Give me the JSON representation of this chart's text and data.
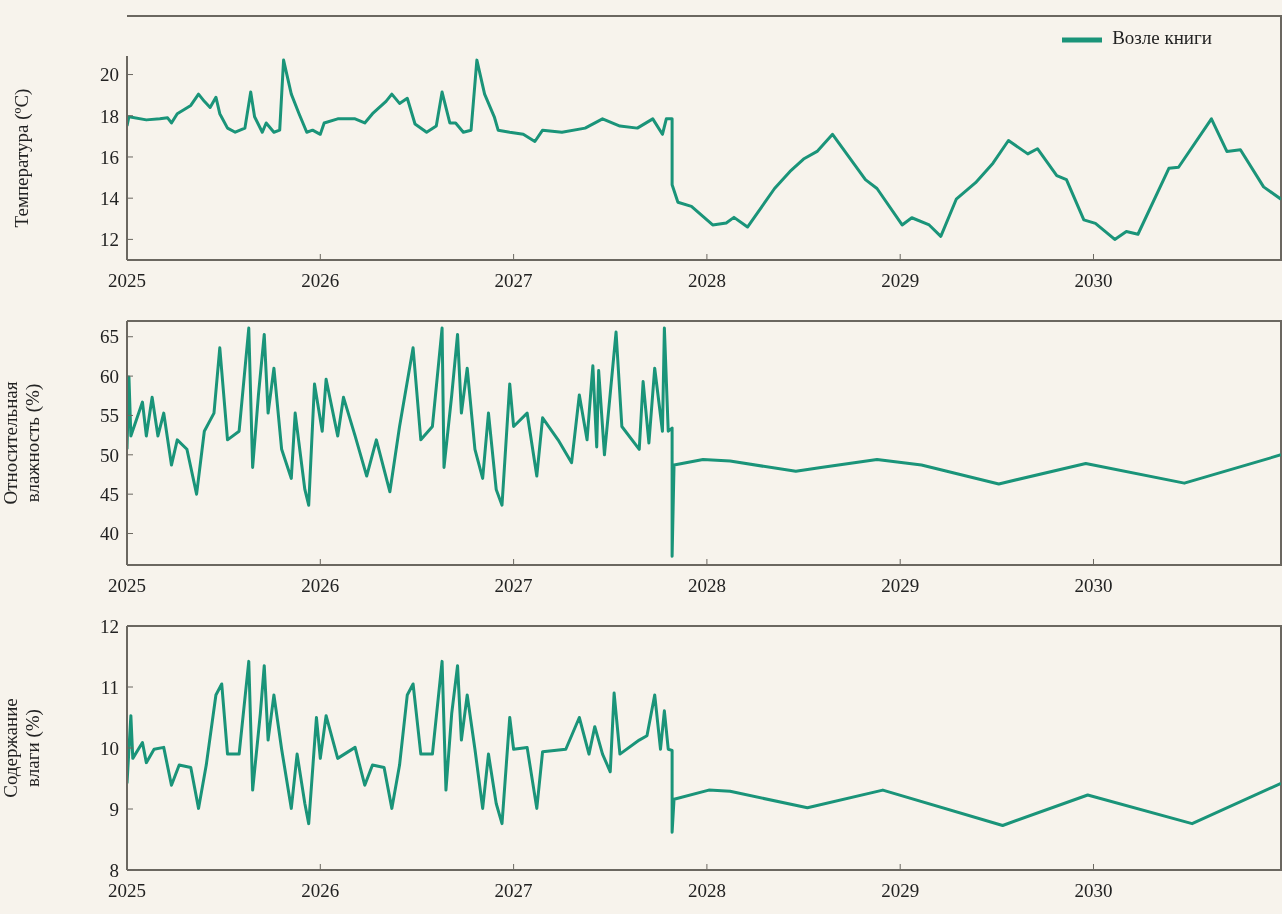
{
  "chart_data": [
    {
      "type": "line",
      "ylabel": "Температура (ºC)",
      "legend": "top right",
      "xlim": [
        2025,
        2030.97
      ],
      "xticks": [
        2025,
        2026,
        2027,
        2028,
        2029,
        2030
      ],
      "ylim": [
        11,
        20.9
      ],
      "yticks": [
        12,
        14,
        16,
        18,
        20
      ],
      "x": [
        2025,
        2025.01,
        2025.1,
        2025.17,
        2025.21,
        2025.23,
        2025.26,
        2025.33,
        2025.37,
        2025.4,
        2025.43,
        2025.46,
        2025.48,
        2025.52,
        2025.56,
        2025.61,
        2025.64,
        2025.66,
        2025.7,
        2025.72,
        2025.76,
        2025.79,
        2025.81,
        2025.85,
        2025.89,
        2025.93,
        2025.96,
        2026,
        2026.02,
        2026.09,
        2026.18,
        2026.23,
        2026.27,
        2026.34,
        2026.37,
        2026.41,
        2026.45,
        2026.49,
        2026.55,
        2026.6,
        2026.63,
        2026.67,
        2026.7,
        2026.74,
        2026.78,
        2026.81,
        2026.85,
        2026.9,
        2026.92,
        2026.98,
        2027.05,
        2027.11,
        2027.15,
        2027.25,
        2027.37,
        2027.46,
        2027.55,
        2027.64,
        2027.72,
        2027.77,
        2027.79,
        2027.82,
        2027.82,
        2027.85,
        2027.92,
        2028.03,
        2028.1,
        2028.14,
        2028.21,
        2028.35,
        2028.43,
        2028.5,
        2028.57,
        2028.65,
        2028.82,
        2028.88,
        2029.01,
        2029.06,
        2029.15,
        2029.21,
        2029.29,
        2029.39,
        2029.48,
        2029.56,
        2029.66,
        2029.71,
        2029.81,
        2029.86,
        2029.95,
        2030.01,
        2030.11,
        2030.17,
        2030.23,
        2030.39,
        2030.44,
        2030.61,
        2030.69,
        2030.76,
        2030.88,
        2030.97
      ],
      "series": [
        {
          "name": "Возле книги",
          "color": "#1a9479",
          "values": [
            17.5,
            17.95,
            17.8,
            17.85,
            17.9,
            17.65,
            18.1,
            18.5,
            19.05,
            18.7,
            18.4,
            18.9,
            18.1,
            17.4,
            17.2,
            17.4,
            19.15,
            17.95,
            17.2,
            17.65,
            17.2,
            17.3,
            20.7,
            19.05,
            18.1,
            17.2,
            17.3,
            17.1,
            17.65,
            17.85,
            17.85,
            17.65,
            18.1,
            18.7,
            19.05,
            18.6,
            18.85,
            17.6,
            17.2,
            17.5,
            19.15,
            17.65,
            17.65,
            17.2,
            17.3,
            20.7,
            19.05,
            17.95,
            17.3,
            17.2,
            17.1,
            16.75,
            17.3,
            17.2,
            17.4,
            17.85,
            17.5,
            17.4,
            17.85,
            17.1,
            17.85,
            17.85,
            14.65,
            13.8,
            13.6,
            12.7,
            12.8,
            13.07,
            12.6,
            14.47,
            15.3,
            15.9,
            16.27,
            17.1,
            14.9,
            14.47,
            12.7,
            13.05,
            12.7,
            12.15,
            13.95,
            14.75,
            15.7,
            16.8,
            16.15,
            16.4,
            15.1,
            14.9,
            12.95,
            12.78,
            12,
            12.38,
            12.25,
            15.45,
            15.5,
            17.85,
            16.27,
            16.35,
            14.55,
            13.95
          ]
        }
      ]
    },
    {
      "type": "line",
      "ylabel": "Относительная\nвлажность (%)",
      "xlim": [
        2025,
        2030.97
      ],
      "xticks": [
        2025,
        2026,
        2027,
        2028,
        2029,
        2030
      ],
      "ylim": [
        36,
        67
      ],
      "yticks": [
        40,
        45,
        50,
        55,
        60,
        65
      ],
      "x": [
        2025,
        2025.01,
        2025.02,
        2025.08,
        2025.1,
        2025.13,
        2025.16,
        2025.19,
        2025.23,
        2025.26,
        2025.31,
        2025.36,
        2025.4,
        2025.45,
        2025.48,
        2025.52,
        2025.58,
        2025.63,
        2025.65,
        2025.68,
        2025.71,
        2025.73,
        2025.76,
        2025.8,
        2025.85,
        2025.87,
        2025.92,
        2025.94,
        2025.97,
        2026.01,
        2026.03,
        2026.09,
        2026.12,
        2026.18,
        2026.24,
        2026.29,
        2026.36,
        2026.41,
        2026.48,
        2026.52,
        2026.58,
        2026.63,
        2026.64,
        2026.68,
        2026.71,
        2026.73,
        2026.76,
        2026.8,
        2026.84,
        2026.87,
        2026.91,
        2026.94,
        2026.98,
        2027,
        2027.07,
        2027.12,
        2027.15,
        2027.23,
        2027.3,
        2027.34,
        2027.38,
        2027.41,
        2027.43,
        2027.44,
        2027.47,
        2027.53,
        2027.56,
        2027.65,
        2027.67,
        2027.7,
        2027.73,
        2027.77,
        2027.78,
        2027.8,
        2027.82,
        2027.82,
        2027.83,
        2027.98,
        2028.12,
        2028.46,
        2028.59,
        2028.88,
        2029.11,
        2029.51,
        2029.96,
        2030.47,
        2030.97
      ],
      "series": [
        {
          "color": "#1a9479",
          "values": [
            50.7,
            59.9,
            52.4,
            56.7,
            52.4,
            57.3,
            52.4,
            55.3,
            48.7,
            51.9,
            50.7,
            45,
            53,
            55.3,
            63.6,
            51.9,
            53,
            66.1,
            48.4,
            57.6,
            65.3,
            55.3,
            61,
            50.7,
            47,
            55.3,
            45.6,
            43.6,
            59,
            53,
            59.6,
            52.4,
            57.3,
            52.4,
            47.3,
            51.9,
            45.3,
            53.6,
            63.6,
            51.9,
            53.6,
            66.1,
            48.4,
            57.6,
            65.3,
            55.3,
            61,
            50.7,
            47,
            55.3,
            45.6,
            43.6,
            59,
            53.6,
            55.3,
            47.3,
            54.7,
            51.9,
            49,
            57.6,
            51.9,
            61.3,
            51,
            60.7,
            50,
            65.6,
            53.6,
            50.7,
            59.3,
            51.5,
            61,
            53,
            66.1,
            53,
            53.4,
            37.1,
            48.7,
            49.4,
            49.2,
            47.9,
            48.4,
            49.4,
            48.7,
            46.3,
            48.9,
            46.4,
            50
          ]
        }
      ]
    },
    {
      "type": "line",
      "ylabel": "Содержание\nвлаги (%)",
      "xlim": [
        2025,
        2030.97
      ],
      "xticks": [
        2025,
        2026,
        2027,
        2028,
        2029,
        2030
      ],
      "ylim": [
        8,
        12
      ],
      "yticks": [
        8,
        9,
        10,
        11,
        12
      ],
      "x": [
        2025,
        2025.02,
        2025.03,
        2025.08,
        2025.1,
        2025.14,
        2025.19,
        2025.23,
        2025.27,
        2025.33,
        2025.37,
        2025.41,
        2025.46,
        2025.49,
        2025.52,
        2025.58,
        2025.63,
        2025.65,
        2025.69,
        2025.71,
        2025.73,
        2025.76,
        2025.8,
        2025.85,
        2025.88,
        2025.92,
        2025.94,
        2025.98,
        2026,
        2026.03,
        2026.09,
        2026.18,
        2026.23,
        2026.27,
        2026.33,
        2026.37,
        2026.41,
        2026.45,
        2026.48,
        2026.52,
        2026.58,
        2026.63,
        2026.65,
        2026.68,
        2026.71,
        2026.73,
        2026.76,
        2026.8,
        2026.84,
        2026.87,
        2026.91,
        2026.94,
        2026.98,
        2027,
        2027.07,
        2027.12,
        2027.15,
        2027.27,
        2027.34,
        2027.39,
        2027.42,
        2027.46,
        2027.5,
        2027.52,
        2027.55,
        2027.65,
        2027.69,
        2027.73,
        2027.76,
        2027.78,
        2027.8,
        2027.82,
        2027.82,
        2027.83,
        2028.01,
        2028.12,
        2028.52,
        2028.91,
        2029.53,
        2029.97,
        2030.51,
        2030.97
      ],
      "series": [
        {
          "color": "#1a9479",
          "values": [
            9.42,
            10.53,
            9.83,
            10.09,
            9.76,
            9.98,
            10.01,
            9.39,
            9.72,
            9.68,
            9.01,
            9.72,
            10.87,
            11.05,
            9.9,
            9.9,
            11.42,
            9.31,
            10.57,
            11.35,
            10.13,
            10.87,
            9.98,
            9.01,
            9.9,
            9.09,
            8.76,
            10.5,
            9.83,
            10.53,
            9.83,
            10.01,
            9.39,
            9.72,
            9.68,
            9.01,
            9.72,
            10.87,
            11.05,
            9.9,
            9.9,
            11.42,
            9.31,
            10.57,
            11.35,
            10.13,
            10.87,
            9.98,
            9.01,
            9.9,
            9.09,
            8.76,
            10.5,
            9.98,
            10.01,
            9.01,
            9.94,
            9.98,
            10.5,
            9.9,
            10.35,
            9.9,
            9.61,
            10.9,
            9.9,
            10.13,
            10.2,
            10.87,
            9.98,
            10.61,
            9.98,
            9.96,
            8.62,
            9.16,
            9.31,
            9.29,
            9.02,
            9.31,
            8.73,
            9.23,
            8.76,
            9.42
          ]
        }
      ]
    }
  ]
}
